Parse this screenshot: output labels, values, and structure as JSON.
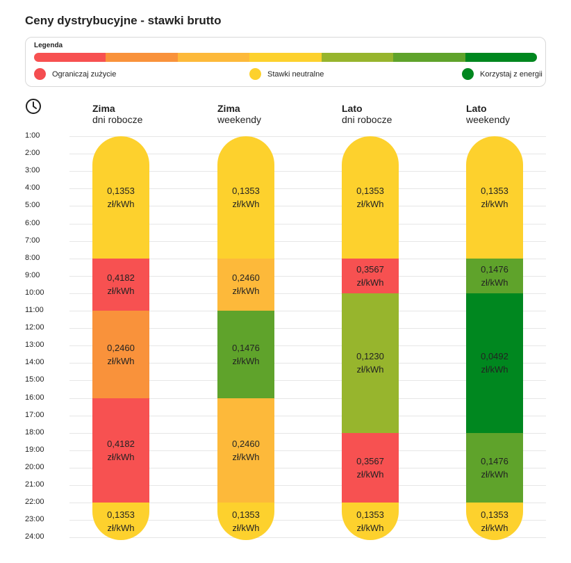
{
  "chart_data": {
    "type": "table",
    "title": "Ceny dystrybucyjne - stawki brutto",
    "legend": {
      "title": "Legenda",
      "scale_colors": [
        "#f75151",
        "#f9923b",
        "#fdb93a",
        "#fdd12d",
        "#97b52d",
        "#5fa32b",
        "#00871f"
      ],
      "items": [
        {
          "label": "Ograniczaj zużycie",
          "color": "#f44d50"
        },
        {
          "label": "Stawki neutralne",
          "color": "#fdd12d"
        },
        {
          "label": "Korzystaj z energii",
          "color": "#00871f"
        }
      ]
    },
    "hours": [
      "1:00",
      "2:00",
      "3:00",
      "4:00",
      "5:00",
      "6:00",
      "7:00",
      "8:00",
      "9:00",
      "10:00",
      "11:00",
      "12:00",
      "13:00",
      "14:00",
      "15:00",
      "16:00",
      "17:00",
      "18:00",
      "19:00",
      "20:00",
      "21:00",
      "22:00",
      "23:00",
      "24:00"
    ],
    "unit": "zł/kWh",
    "columns": [
      {
        "season": "Zima",
        "days": "dni robocze",
        "segments": [
          {
            "from": 1,
            "to": 8,
            "value": "0,1353",
            "color": "#fdd12d"
          },
          {
            "from": 8,
            "to": 11,
            "value": "0,4182",
            "color": "#f75151"
          },
          {
            "from": 11,
            "to": 16,
            "value": "0,2460",
            "color": "#f9923b"
          },
          {
            "from": 16,
            "to": 22,
            "value": "0,4182",
            "color": "#f75151"
          },
          {
            "from": 22,
            "to": 24,
            "value": "0,1353",
            "color": "#fdd12d"
          }
        ]
      },
      {
        "season": "Zima",
        "days": "weekendy",
        "segments": [
          {
            "from": 1,
            "to": 8,
            "value": "0,1353",
            "color": "#fdd12d"
          },
          {
            "from": 8,
            "to": 11,
            "value": "0,2460",
            "color": "#fdb93a"
          },
          {
            "from": 11,
            "to": 16,
            "value": "0,1476",
            "color": "#5fa32b"
          },
          {
            "from": 16,
            "to": 22,
            "value": "0,2460",
            "color": "#fdb93a"
          },
          {
            "from": 22,
            "to": 24,
            "value": "0,1353",
            "color": "#fdd12d"
          }
        ]
      },
      {
        "season": "Lato",
        "days": "dni robocze",
        "segments": [
          {
            "from": 1,
            "to": 8,
            "value": "0,1353",
            "color": "#fdd12d"
          },
          {
            "from": 8,
            "to": 10,
            "value": "0,3567",
            "color": "#f75151"
          },
          {
            "from": 10,
            "to": 18,
            "value": "0,1230",
            "color": "#97b52d"
          },
          {
            "from": 18,
            "to": 22,
            "value": "0,3567",
            "color": "#f75151"
          },
          {
            "from": 22,
            "to": 24,
            "value": "0,1353",
            "color": "#fdd12d"
          }
        ]
      },
      {
        "season": "Lato",
        "days": "weekendy",
        "segments": [
          {
            "from": 1,
            "to": 8,
            "value": "0,1353",
            "color": "#fdd12d"
          },
          {
            "from": 8,
            "to": 10,
            "value": "0,1476",
            "color": "#5fa32b"
          },
          {
            "from": 10,
            "to": 18,
            "value": "0,0492",
            "color": "#00871f"
          },
          {
            "from": 18,
            "to": 22,
            "value": "0,1476",
            "color": "#5fa32b"
          },
          {
            "from": 22,
            "to": 24,
            "value": "0,1353",
            "color": "#fdd12d"
          }
        ]
      }
    ]
  }
}
